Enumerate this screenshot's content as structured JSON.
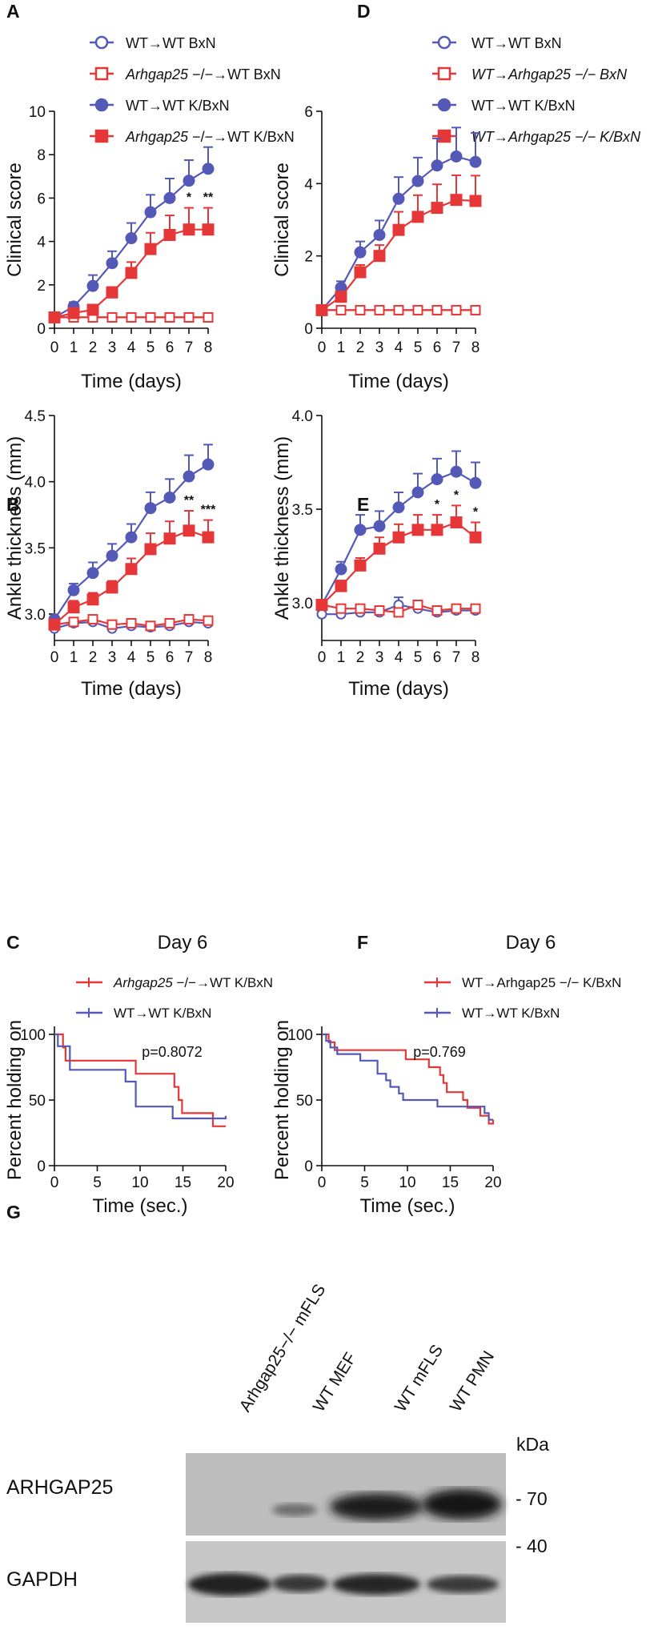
{
  "colors": {
    "blue": "#5458b6",
    "red": "#e53737"
  },
  "chart_data": [
    {
      "panel": "A",
      "type": "line",
      "x": [
        0,
        1,
        2,
        3,
        4,
        5,
        6,
        7,
        8
      ],
      "xlabel": "Time (days)",
      "ylabel": "Clinical score",
      "xticks": [
        "0",
        "1",
        "2",
        "3",
        "4",
        "5",
        "6",
        "7",
        "8"
      ],
      "yticks": [
        "0",
        "2",
        "4",
        "6",
        "8",
        "10"
      ],
      "ylim": [
        0,
        10
      ],
      "series": [
        {
          "name": "WT→WT BxN",
          "name_prefix": "",
          "name_suffix": "",
          "color": "blue",
          "filled": false,
          "shape": "circle",
          "values": [
            0.5,
            0.5,
            0.5,
            0.5,
            0.5,
            0.5,
            0.5,
            0.5,
            0.5
          ],
          "errors": [
            0,
            0,
            0,
            0,
            0,
            0,
            0,
            0,
            0
          ]
        },
        {
          "name": "Arhgap25 −/−→WT BxN",
          "name_prefix": "Arhgap25",
          "name_suffix": " −/−→WT BxN",
          "color": "red",
          "filled": false,
          "shape": "square",
          "values": [
            0.5,
            0.5,
            0.5,
            0.5,
            0.5,
            0.5,
            0.5,
            0.5,
            0.5
          ],
          "errors": [
            0,
            0,
            0,
            0,
            0,
            0,
            0,
            0,
            0
          ]
        },
        {
          "name": "WT→WT K/BxN",
          "name_prefix": "",
          "name_suffix": "",
          "color": "blue",
          "filled": true,
          "shape": "circle",
          "values": [
            0.5,
            1.0,
            1.95,
            3.0,
            4.15,
            5.35,
            6.0,
            6.8,
            7.35
          ],
          "errors": [
            0,
            0.2,
            0.5,
            0.55,
            0.7,
            0.8,
            0.9,
            0.95,
            1.0
          ]
        },
        {
          "name": "Arhgap25 −/−→WT K/BxN",
          "name_prefix": "Arhgap25",
          "name_suffix": " −/−→WT K/BxN",
          "color": "red",
          "filled": true,
          "shape": "square",
          "values": [
            0.5,
            0.7,
            0.85,
            1.65,
            2.55,
            3.65,
            4.3,
            4.55,
            4.55
          ],
          "errors": [
            0,
            0.15,
            0.2,
            0.25,
            0.5,
            0.75,
            0.9,
            1.0,
            1.0
          ]
        }
      ],
      "annotations": [
        {
          "x": 7,
          "text": "*"
        },
        {
          "x": 8,
          "text": "**"
        }
      ]
    },
    {
      "panel": "B",
      "type": "line",
      "x": [
        0,
        1,
        2,
        3,
        4,
        5,
        6,
        7,
        8
      ],
      "xlabel": "Time (days)",
      "ylabel": "Ankle thickness (mm)",
      "xticks": [
        "0",
        "1",
        "2",
        "3",
        "4",
        "5",
        "6",
        "7",
        "8"
      ],
      "yticks": [
        "3.0",
        "3.5",
        "4.0",
        "4.5"
      ],
      "ylim": [
        2.8,
        4.5
      ],
      "series": [
        {
          "name": "WT→WT BxN",
          "color": "blue",
          "filled": false,
          "shape": "circle",
          "values": [
            2.89,
            2.93,
            2.94,
            2.89,
            2.91,
            2.9,
            2.91,
            2.94,
            2.93
          ],
          "errors": [
            0,
            0.02,
            0.02,
            0.02,
            0.02,
            0.02,
            0.02,
            0.02,
            0.02
          ]
        },
        {
          "name": "Arhgap25 −/−→WT BxN",
          "color": "red",
          "filled": false,
          "shape": "square",
          "values": [
            2.92,
            2.94,
            2.96,
            2.92,
            2.93,
            2.91,
            2.93,
            2.96,
            2.95
          ],
          "errors": [
            0.02,
            0.02,
            0.02,
            0.02,
            0.02,
            0.02,
            0.02,
            0.02,
            0.02
          ]
        },
        {
          "name": "WT→WT K/BxN",
          "color": "blue",
          "filled": true,
          "shape": "circle",
          "values": [
            2.96,
            3.18,
            3.31,
            3.44,
            3.58,
            3.8,
            3.88,
            4.04,
            4.13
          ],
          "errors": [
            0,
            0.05,
            0.08,
            0.09,
            0.1,
            0.12,
            0.14,
            0.16,
            0.15
          ]
        },
        {
          "name": "Arhgap25 −/−→WT K/BxN",
          "color": "red",
          "filled": true,
          "shape": "square",
          "values": [
            2.92,
            3.05,
            3.11,
            3.2,
            3.34,
            3.49,
            3.57,
            3.63,
            3.58
          ],
          "errors": [
            0,
            0.05,
            0.05,
            0.05,
            0.08,
            0.12,
            0.13,
            0.15,
            0.13
          ]
        }
      ],
      "annotations": [
        {
          "x": 7,
          "text": "**"
        },
        {
          "x": 8,
          "text": "***"
        }
      ]
    },
    {
      "panel": "C",
      "type": "line",
      "subtype": "kaplan-meier",
      "title": "Day 6",
      "xlabel": "Time (sec.)",
      "ylabel": "Percent holding on",
      "xticks": [
        "0",
        "5",
        "10",
        "15",
        "20"
      ],
      "yticks": [
        "0",
        "50",
        "100"
      ],
      "xlim": [
        0,
        20
      ],
      "ylim": [
        0,
        100
      ],
      "p_value": "p=0.8072",
      "series": [
        {
          "name": "Arhgap25 −/−→WT K/BxN",
          "name_prefix": "Arhgap25",
          "name_suffix": " −/−→WT K/BxN",
          "color": "red",
          "steps": [
            [
              0,
              100
            ],
            [
              1,
              100
            ],
            [
              1,
              90
            ],
            [
              1.3,
              90
            ],
            [
              1.3,
              80
            ],
            [
              9.5,
              80
            ],
            [
              9.5,
              70
            ],
            [
              14,
              70
            ],
            [
              14,
              60
            ],
            [
              14.5,
              60
            ],
            [
              14.5,
              50
            ],
            [
              14.9,
              50
            ],
            [
              14.9,
              40
            ],
            [
              18.5,
              40
            ],
            [
              18.5,
              30
            ],
            [
              20,
              30
            ]
          ]
        },
        {
          "name": "WT→WT K/BxN",
          "name_prefix": "",
          "name_suffix": "",
          "color": "blue",
          "steps": [
            [
              0,
              100
            ],
            [
              0.4,
              100
            ],
            [
              0.4,
              91
            ],
            [
              1.8,
              91
            ],
            [
              1.8,
              73
            ],
            [
              8.3,
              73
            ],
            [
              8.3,
              64
            ],
            [
              9.5,
              64
            ],
            [
              9.5,
              45
            ],
            [
              13.8,
              45
            ],
            [
              13.8,
              36
            ],
            [
              20,
              36
            ],
            [
              20,
              38
            ]
          ]
        }
      ]
    },
    {
      "panel": "D",
      "type": "line",
      "x": [
        0,
        1,
        2,
        3,
        4,
        5,
        6,
        7,
        8
      ],
      "xlabel": "Time (days)",
      "ylabel": "Clinical score",
      "xticks": [
        "0",
        "1",
        "2",
        "3",
        "4",
        "5",
        "6",
        "7",
        "8"
      ],
      "yticks": [
        "0",
        "2",
        "4",
        "6"
      ],
      "ylim": [
        0,
        6
      ],
      "series": [
        {
          "name": "WT→WT BxN",
          "name_prefix": "",
          "name_suffix": "",
          "italic": false,
          "color": "blue",
          "filled": false,
          "shape": "circle",
          "values": [
            0.5,
            0.5,
            0.5,
            0.5,
            0.5,
            0.5,
            0.5,
            0.5,
            0.5
          ],
          "errors": [
            0,
            0,
            0,
            0,
            0,
            0,
            0,
            0,
            0
          ]
        },
        {
          "name": "WT→Arhgap25 −/− BxN",
          "name_prefix": "WT→Arhgap25",
          "name_suffix": " BxN",
          "italic": true,
          "color": "red",
          "filled": false,
          "shape": "square",
          "values": [
            0.5,
            0.5,
            0.5,
            0.5,
            0.5,
            0.5,
            0.5,
            0.5,
            0.5
          ],
          "errors": [
            0,
            0,
            0,
            0,
            0,
            0,
            0,
            0,
            0
          ]
        },
        {
          "name": "WT→WT K/BxN",
          "name_prefix": "",
          "name_suffix": "",
          "italic": false,
          "color": "blue",
          "filled": true,
          "shape": "circle",
          "values": [
            0.5,
            1.12,
            2.1,
            2.58,
            3.58,
            4.07,
            4.5,
            4.75,
            4.6
          ],
          "errors": [
            0,
            0.18,
            0.3,
            0.4,
            0.6,
            0.65,
            0.75,
            0.8,
            0.8
          ]
        },
        {
          "name": "WT→Arhgap25 −/− K/BxN",
          "name_prefix": "WT→Arhgap25",
          "name_suffix": " K/BxN",
          "italic": true,
          "color": "red",
          "filled": true,
          "shape": "square",
          "values": [
            0.5,
            0.87,
            1.55,
            2.0,
            2.72,
            3.08,
            3.33,
            3.55,
            3.52
          ],
          "errors": [
            0,
            0.12,
            0.2,
            0.3,
            0.5,
            0.6,
            0.65,
            0.68,
            0.7
          ]
        }
      ]
    },
    {
      "panel": "E",
      "type": "line",
      "x": [
        0,
        1,
        2,
        3,
        4,
        5,
        6,
        7,
        8
      ],
      "xlabel": "Time (days)",
      "ylabel": "Ankle thickness (mm)",
      "xticks": [
        "0",
        "1",
        "2",
        "3",
        "4",
        "5",
        "6",
        "7",
        "8"
      ],
      "yticks": [
        "3.0",
        "3.5",
        "4.0"
      ],
      "ylim": [
        2.8,
        4.0
      ],
      "series": [
        {
          "name": "WT→WT BxN",
          "color": "blue",
          "filled": false,
          "shape": "circle",
          "values": [
            2.94,
            2.94,
            2.95,
            2.95,
            2.99,
            2.97,
            2.95,
            2.96,
            2.96
          ],
          "errors": [
            0.02,
            0.01,
            0.01,
            0.01,
            0.04,
            0.02,
            0.01,
            0.01,
            0.01
          ]
        },
        {
          "name": "WT→Arhgap25 −/− BxN",
          "color": "red",
          "filled": false,
          "shape": "square",
          "values": [
            2.99,
            2.97,
            2.97,
            2.96,
            2.95,
            2.99,
            2.96,
            2.97,
            2.97
          ],
          "errors": [
            0.01,
            0.01,
            0.01,
            0.01,
            0.01,
            0.02,
            0.01,
            0.01,
            0.01
          ]
        },
        {
          "name": "WT→WT K/BxN",
          "color": "blue",
          "filled": true,
          "shape": "circle",
          "values": [
            2.99,
            3.18,
            3.39,
            3.41,
            3.51,
            3.59,
            3.66,
            3.7,
            3.64
          ],
          "errors": [
            0,
            0.04,
            0.08,
            0.08,
            0.08,
            0.1,
            0.11,
            0.11,
            0.11
          ]
        },
        {
          "name": "WT→Arhgap25 −/− K/BxN",
          "color": "red",
          "filled": true,
          "shape": "square",
          "values": [
            2.99,
            3.09,
            3.2,
            3.29,
            3.35,
            3.39,
            3.39,
            3.43,
            3.35
          ],
          "errors": [
            0,
            0.03,
            0.04,
            0.06,
            0.07,
            0.08,
            0.08,
            0.09,
            0.08
          ]
        }
      ],
      "annotations": [
        {
          "x": 6,
          "text": "*"
        },
        {
          "x": 7,
          "text": "*"
        },
        {
          "x": 8,
          "text": "*"
        }
      ]
    },
    {
      "panel": "F",
      "type": "line",
      "subtype": "kaplan-meier",
      "title": "Day 6",
      "xlabel": "Time (sec.)",
      "ylabel": "Percent holding on",
      "xticks": [
        "0",
        "5",
        "10",
        "15",
        "20"
      ],
      "yticks": [
        "0",
        "50",
        "100"
      ],
      "xlim": [
        0,
        20
      ],
      "ylim": [
        0,
        100
      ],
      "p_value": "p=0.769",
      "series": [
        {
          "name": "WT→Arhgap25 −/− K/BxN",
          "name_prefix": "WT→Arhgap25",
          "name_suffix": " −/− K/BxN",
          "color": "red",
          "steps": [
            [
              0,
              100
            ],
            [
              0.8,
              100
            ],
            [
              0.8,
              94
            ],
            [
              1.5,
              94
            ],
            [
              1.5,
              88
            ],
            [
              9.8,
              88
            ],
            [
              9.8,
              81
            ],
            [
              12.5,
              81
            ],
            [
              12.5,
              75
            ],
            [
              13.8,
              75
            ],
            [
              13.8,
              69
            ],
            [
              14.2,
              69
            ],
            [
              14.2,
              63
            ],
            [
              14.6,
              63
            ],
            [
              14.6,
              56
            ],
            [
              16.5,
              56
            ],
            [
              16.5,
              50
            ],
            [
              17,
              50
            ],
            [
              17,
              44
            ],
            [
              18.5,
              44
            ],
            [
              18.5,
              38
            ],
            [
              19.5,
              38
            ],
            [
              19.5,
              32
            ],
            [
              20,
              32
            ],
            [
              20,
              35
            ]
          ]
        },
        {
          "name": "WT→WT K/BxN",
          "name_prefix": "",
          "name_suffix": "",
          "color": "blue",
          "steps": [
            [
              0,
              100
            ],
            [
              0.5,
              100
            ],
            [
              0.5,
              95
            ],
            [
              1,
              95
            ],
            [
              1,
              90
            ],
            [
              1.8,
              90
            ],
            [
              1.8,
              85
            ],
            [
              4.5,
              85
            ],
            [
              4.5,
              80
            ],
            [
              6.5,
              80
            ],
            [
              6.5,
              70
            ],
            [
              7.5,
              70
            ],
            [
              7.5,
              65
            ],
            [
              8,
              65
            ],
            [
              8,
              60
            ],
            [
              9,
              60
            ],
            [
              9,
              55
            ],
            [
              9.5,
              55
            ],
            [
              9.5,
              50
            ],
            [
              13.5,
              50
            ],
            [
              13.5,
              45
            ],
            [
              19,
              45
            ],
            [
              19,
              40
            ],
            [
              19.5,
              40
            ],
            [
              19.5,
              35
            ],
            [
              20,
              35
            ]
          ]
        }
      ]
    }
  ],
  "panels": {
    "A": {
      "letter": "A"
    },
    "B": {
      "letter": "B"
    },
    "C": {
      "letter": "C"
    },
    "D": {
      "letter": "D"
    },
    "E": {
      "letter": "E"
    },
    "F": {
      "letter": "F"
    },
    "G": {
      "letter": "G"
    }
  },
  "legend_A": [
    "WT→WT BxN",
    "Arhgap25",
    " −/−→WT BxN",
    "WT→WT K/BxN",
    "Arhgap25",
    " −/−→WT K/BxN"
  ],
  "western_blot": {
    "lanes": [
      "Arhgap25−/− mFLS",
      "WT MEF",
      "WT mFLS",
      "WT PMN"
    ],
    "rows": [
      {
        "label": "ARHGAP25",
        "marker": "- 70"
      },
      {
        "label": "GAPDH",
        "marker": "- 40"
      }
    ],
    "unit_label": "kDa"
  }
}
